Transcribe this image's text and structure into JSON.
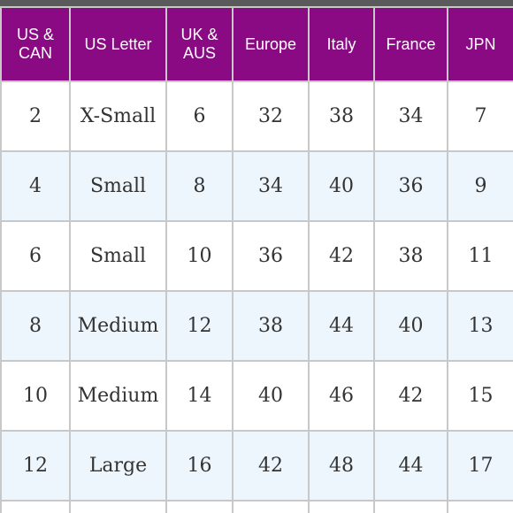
{
  "accent_color": "#8a0a84",
  "stripe_color": "#eef6fd",
  "table": {
    "headers": [
      "US &\nCAN",
      "US Letter",
      "UK &\nAUS",
      "Europe",
      "Italy",
      "France",
      "JPN"
    ],
    "rows": [
      [
        "2",
        "X-Small",
        "6",
        "32",
        "38",
        "34",
        "7"
      ],
      [
        "4",
        "Small",
        "8",
        "34",
        "40",
        "36",
        "9"
      ],
      [
        "6",
        "Small",
        "10",
        "36",
        "42",
        "38",
        "11"
      ],
      [
        "8",
        "Medium",
        "12",
        "38",
        "44",
        "40",
        "13"
      ],
      [
        "10",
        "Medium",
        "14",
        "40",
        "46",
        "42",
        "15"
      ],
      [
        "12",
        "Large",
        "16",
        "42",
        "48",
        "44",
        "17"
      ]
    ]
  }
}
